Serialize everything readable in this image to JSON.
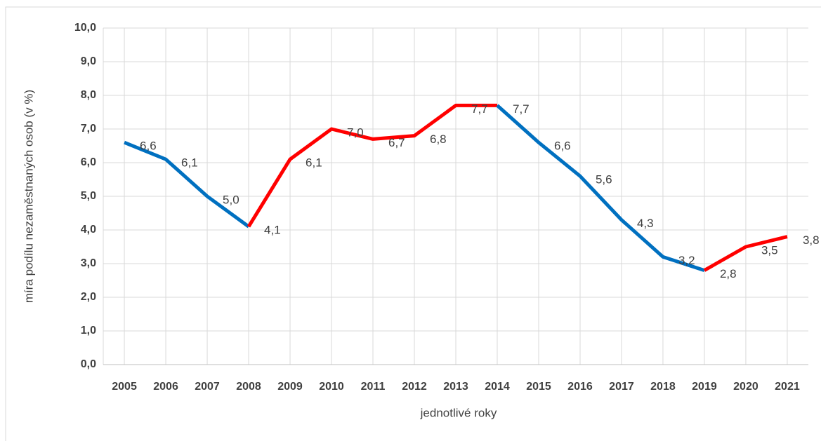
{
  "chart_data": {
    "type": "line",
    "y_label": "míra podílu nezaměstnaných osob (v %)",
    "x_label": "jednotlivé roky",
    "categories": [
      "2005",
      "2006",
      "2007",
      "2008",
      "2009",
      "2010",
      "2011",
      "2012",
      "2013",
      "2014",
      "2015",
      "2016",
      "2017",
      "2018",
      "2019",
      "2020",
      "2021"
    ],
    "values": [
      6.6,
      6.1,
      5.0,
      4.1,
      6.1,
      7.0,
      6.7,
      6.8,
      7.7,
      7.7,
      6.6,
      5.6,
      4.3,
      3.2,
      2.8,
      3.5,
      3.8
    ],
    "value_labels": [
      "6,6",
      "6,1",
      "5,0",
      "4,1",
      "6,1",
      "7,0",
      "6,7",
      "6,8",
      "7,7",
      "7,7",
      "6,6",
      "5,6",
      "4,3",
      "3,2",
      "2,8",
      "3,5",
      "3,8"
    ],
    "segment_colors": [
      "#0070c0",
      "#0070c0",
      "#0070c0",
      "#ff0000",
      "#ff0000",
      "#ff0000",
      "#ff0000",
      "#ff0000",
      "#ff0000",
      "#0070c0",
      "#0070c0",
      "#0070c0",
      "#0070c0",
      "#0070c0",
      "#ff0000",
      "#ff0000"
    ],
    "ylim": [
      0,
      10
    ],
    "yticks": [
      {
        "value": 0,
        "label": "0,0"
      },
      {
        "value": 1,
        "label": "1,0"
      },
      {
        "value": 2,
        "label": "2,0"
      },
      {
        "value": 3,
        "label": "3,0"
      },
      {
        "value": 4,
        "label": "4,0"
      },
      {
        "value": 5,
        "label": "5,0"
      },
      {
        "value": 6,
        "label": "6,0"
      },
      {
        "value": 7,
        "label": "7,0"
      },
      {
        "value": 8,
        "label": "8,0"
      },
      {
        "value": 9,
        "label": "9,0"
      },
      {
        "value": 10,
        "label": "10,0"
      }
    ],
    "grid": true
  }
}
